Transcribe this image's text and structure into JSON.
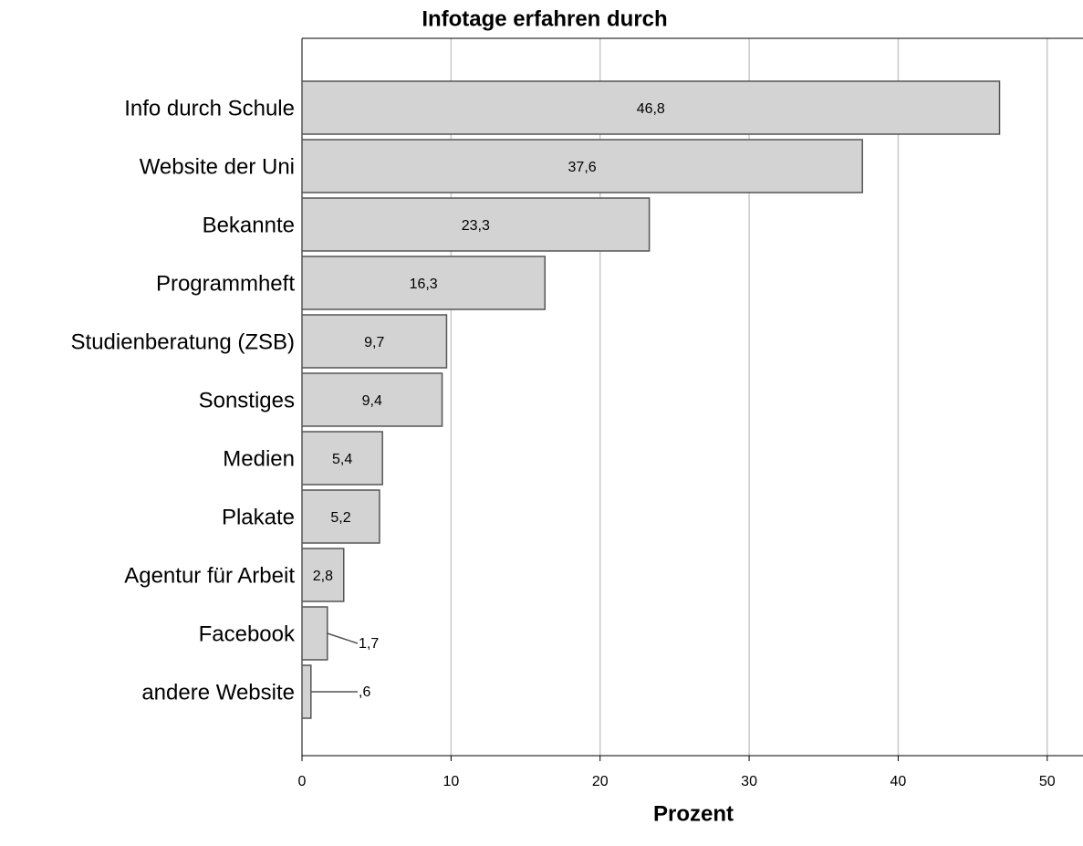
{
  "chart_data": {
    "type": "bar",
    "orientation": "horizontal",
    "title": "Infotage erfahren durch",
    "xlabel": "Prozent",
    "categories": [
      "Info durch Schule",
      "Website der Uni",
      "Bekannte",
      "Programmheft",
      "Studienberatung (ZSB)",
      "Sonstiges",
      "Medien",
      "Plakate",
      "Agentur für Arbeit",
      "Facebook",
      "andere Website"
    ],
    "values": [
      46.8,
      37.6,
      23.3,
      16.3,
      9.7,
      9.4,
      5.4,
      5.2,
      2.8,
      1.7,
      0.6
    ],
    "value_labels": [
      "46,8",
      "37,6",
      "23,3",
      "16,3",
      "9,7",
      "9,4",
      "5,4",
      "5,2",
      "2,8",
      "1,7",
      ",6"
    ],
    "color": "#d3d3d3",
    "xlim": [
      0,
      52.4
    ],
    "xticks": [
      0,
      10,
      20,
      30,
      40,
      50
    ],
    "grid": true
  }
}
